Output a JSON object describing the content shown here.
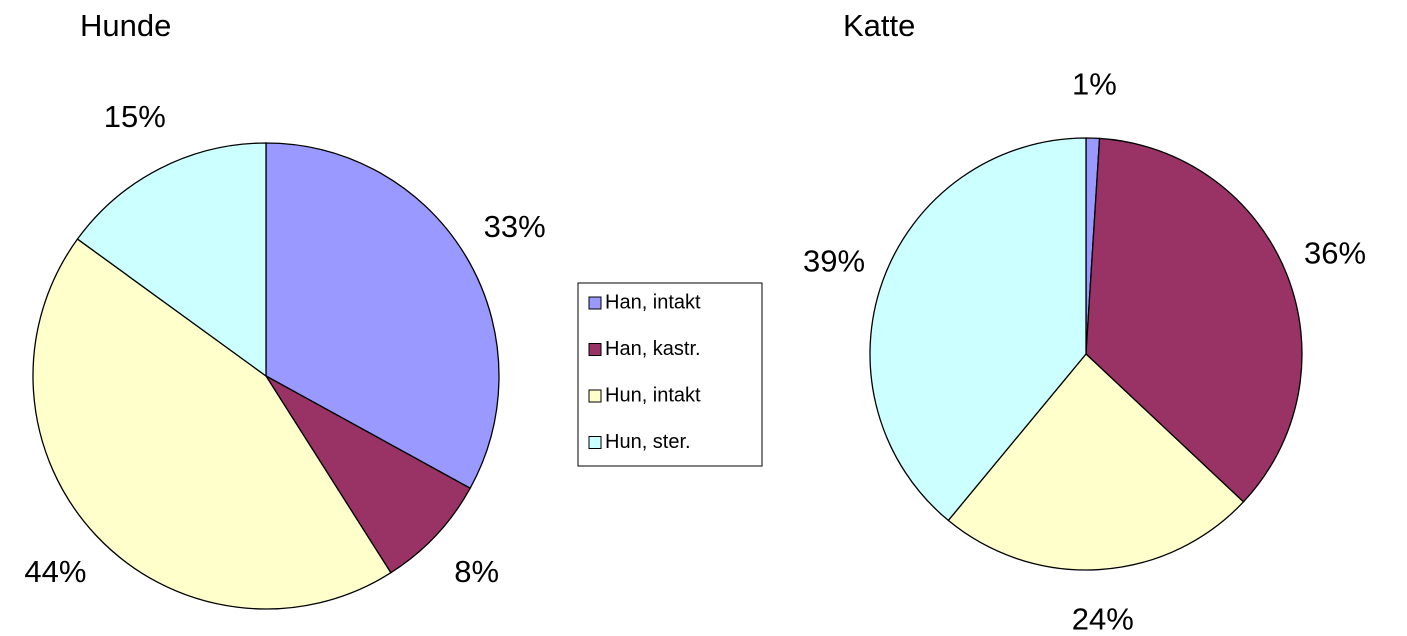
{
  "legend": {
    "categories": [
      "Han, intakt",
      "Han, kastr.",
      "Hun, intakt",
      "Hun, ster."
    ],
    "colors": [
      "#9999ff",
      "#993366",
      "#ffffcc",
      "#ccffff"
    ]
  },
  "chart_data": [
    {
      "type": "pie",
      "title": "Hunde",
      "values": [
        33,
        8,
        44,
        15
      ],
      "value_labels": [
        "33%",
        "8%",
        "44%",
        "15%"
      ]
    },
    {
      "type": "pie",
      "title": "Katte",
      "values": [
        1,
        36,
        24,
        39
      ],
      "value_labels": [
        "1%",
        "36%",
        "24%",
        "39%"
      ]
    }
  ]
}
